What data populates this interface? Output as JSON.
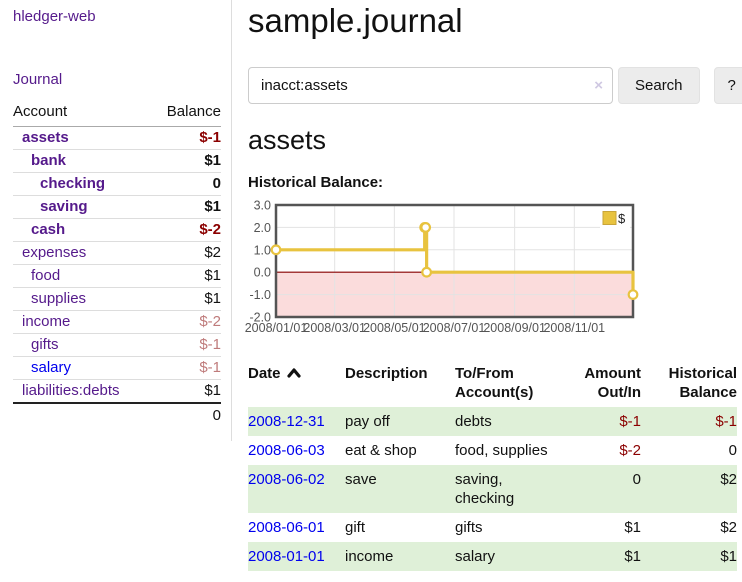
{
  "sidebar": {
    "brand": "hledger-web",
    "nav_journal": "Journal",
    "accounts": {
      "headers": [
        "Account",
        "Balance"
      ],
      "rows": [
        {
          "name": "assets",
          "depth": 1,
          "bold": true,
          "balance": "$-1",
          "balance_style": "neg-strong"
        },
        {
          "name": "bank",
          "depth": 2,
          "bold": true,
          "balance": "$1",
          "balance_style": ""
        },
        {
          "name": "checking",
          "depth": 3,
          "bold": true,
          "balance": "0",
          "balance_style": ""
        },
        {
          "name": "saving",
          "depth": 3,
          "bold": true,
          "balance": "$1",
          "balance_style": ""
        },
        {
          "name": "cash",
          "depth": 2,
          "bold": true,
          "balance": "$-2",
          "balance_style": "neg-strong"
        },
        {
          "name": "expenses",
          "depth": 1,
          "bold": false,
          "balance": "$2",
          "balance_style": ""
        },
        {
          "name": "food",
          "depth": 2,
          "bold": false,
          "balance": "$1",
          "balance_style": ""
        },
        {
          "name": "supplies",
          "depth": 2,
          "bold": false,
          "balance": "$1",
          "balance_style": ""
        },
        {
          "name": "income",
          "depth": 1,
          "bold": false,
          "balance": "$-2",
          "balance_style": "neg-soft"
        },
        {
          "name": "gifts",
          "depth": 2,
          "bold": false,
          "balance": "$-1",
          "balance_style": "neg-soft"
        },
        {
          "name": "salary",
          "depth": 2,
          "bold": false,
          "balance": "$-1",
          "balance_style": "neg-soft",
          "link_color": "blue"
        },
        {
          "name": "liabilities:debts",
          "depth": 1,
          "bold": false,
          "balance": "$1",
          "balance_style": ""
        }
      ],
      "total": "0"
    }
  },
  "header": {
    "title": "sample.journal"
  },
  "search": {
    "value": "inacct:assets",
    "clear_icon": "×",
    "button_label": "Search",
    "help_label": "?"
  },
  "account_page": {
    "heading": "assets",
    "chart_label": "Historical Balance:"
  },
  "chart_data": {
    "type": "line",
    "step": true,
    "title": "Historical Balance",
    "legend": "$",
    "legend_position": "top-right",
    "grid": true,
    "ylim": [
      -2.0,
      3.0
    ],
    "y_ticks": [
      "3.0",
      "2.0",
      "1.0",
      "0.0",
      "-1.0",
      "-2.0"
    ],
    "y_tick_values": [
      3,
      2,
      1,
      0,
      -1,
      -2
    ],
    "x_ticks": [
      "2008/01/01",
      "2008/03/01",
      "2008/05/01",
      "2008/07/01",
      "2008/09/01",
      "2008/11/01"
    ],
    "x_range": [
      "2008-01-01",
      "2008-12-31"
    ],
    "series": [
      {
        "name": "$",
        "color": "#E8C33F",
        "points": [
          {
            "date": "2008-01-01",
            "value": 1
          },
          {
            "date": "2008-06-01",
            "value": 2
          },
          {
            "date": "2008-06-02",
            "value": 2
          },
          {
            "date": "2008-06-03",
            "value": 0
          },
          {
            "date": "2008-12-31",
            "value": -1
          }
        ]
      }
    ],
    "colors": {
      "negative_fill": "#fbdcdc",
      "zero_line": "#8b0000",
      "border": "#545454",
      "grid_line": "#e3e3e3",
      "tick_text": "#545454",
      "marker_fill": "#ffffff",
      "legend_square_border": "#c9a53a"
    }
  },
  "register_table": {
    "headers": [
      {
        "label": "Date",
        "sorted": "asc",
        "align": "left"
      },
      {
        "label": "Description",
        "align": "left"
      },
      {
        "label": "To/From Account(s)",
        "align": "left"
      },
      {
        "label": "Amount Out/In",
        "align": "right"
      },
      {
        "label": "Historical Balance",
        "align": "right"
      }
    ],
    "rows": [
      {
        "date": "2008-12-31",
        "description": "pay off",
        "accounts": "debts",
        "amount": "$-1",
        "amount_neg": true,
        "balance": "$-1",
        "balance_neg": true,
        "green": true
      },
      {
        "date": "2008-06-03",
        "description": "eat & shop",
        "accounts": "food, supplies",
        "amount": "$-2",
        "amount_neg": true,
        "balance": "0",
        "balance_neg": false,
        "green": false
      },
      {
        "date": "2008-06-02",
        "description": "save",
        "accounts": "saving, checking",
        "amount": "0",
        "amount_neg": false,
        "balance": "$2",
        "balance_neg": false,
        "green": true
      },
      {
        "date": "2008-06-01",
        "description": "gift",
        "accounts": "gifts",
        "amount": "$1",
        "amount_neg": false,
        "balance": "$2",
        "balance_neg": false,
        "green": false
      },
      {
        "date": "2008-01-01",
        "description": "income",
        "accounts": "salary",
        "amount": "$1",
        "amount_neg": false,
        "balance": "$1",
        "balance_neg": false,
        "green": true
      }
    ]
  }
}
